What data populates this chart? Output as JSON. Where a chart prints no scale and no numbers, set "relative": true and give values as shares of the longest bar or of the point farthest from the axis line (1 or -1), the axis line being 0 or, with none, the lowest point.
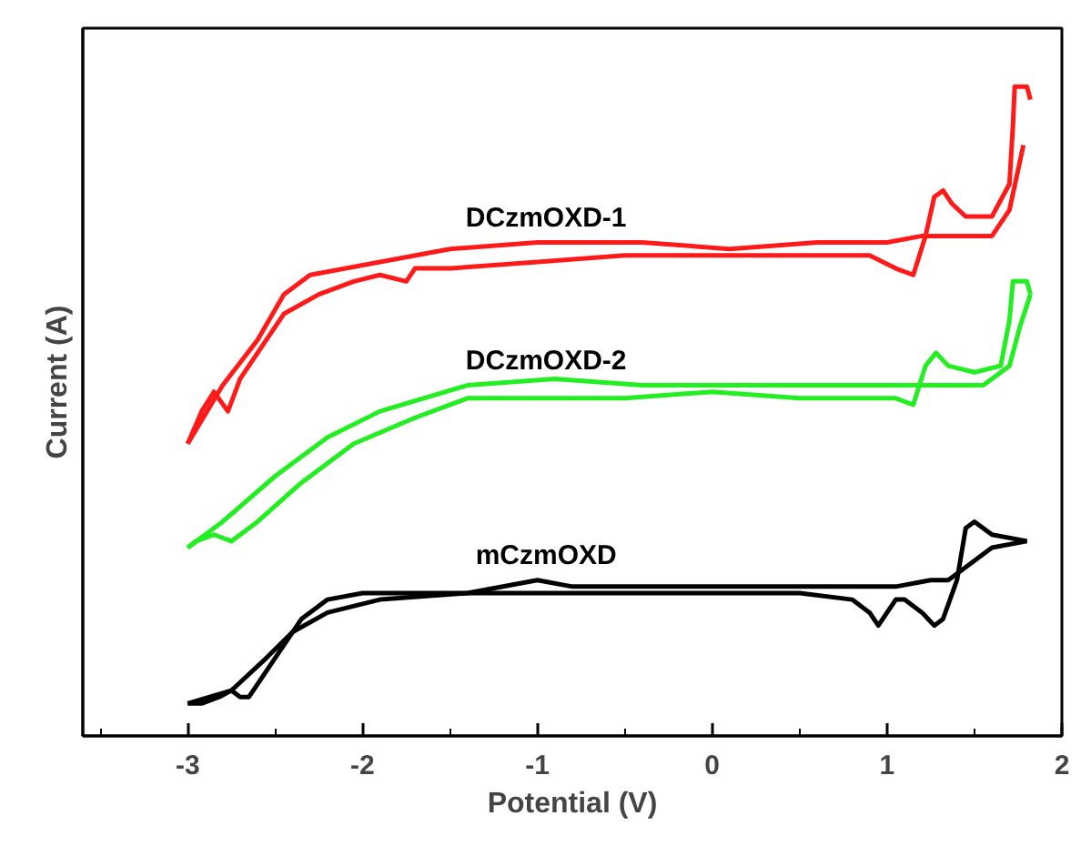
{
  "chart_data": {
    "type": "line",
    "xlabel": "Potential (V)",
    "ylabel": "Current (A)",
    "relative": true,
    "legend": false,
    "marker": "none",
    "line_style": "solid",
    "xlim": [
      -3.6,
      2
    ],
    "xticks": [
      -3,
      -2,
      -1,
      0,
      1,
      2
    ],
    "series": [
      {
        "name": "DCzmOXD-1",
        "color": "#ff1a1a",
        "x": [
          -3.0,
          -2.92,
          -2.85,
          -2.77,
          -2.7,
          -2.55,
          -2.45,
          -2.25,
          -2.05,
          -1.9,
          -1.75,
          -1.7,
          -1.5,
          -1.0,
          -0.5,
          0.0,
          0.5,
          0.9,
          1.05,
          1.15,
          1.22,
          1.27,
          1.32,
          1.37,
          1.45,
          1.6,
          1.7,
          1.72,
          1.73,
          1.8,
          1.82
        ],
        "values": [
          0.45,
          0.5,
          0.53,
          0.5,
          0.55,
          0.61,
          0.65,
          0.68,
          0.7,
          0.71,
          0.7,
          0.72,
          0.72,
          0.73,
          0.74,
          0.74,
          0.74,
          0.74,
          0.72,
          0.71,
          0.77,
          0.83,
          0.84,
          0.82,
          0.8,
          0.8,
          0.85,
          0.94,
          1.0,
          1.0,
          0.98
        ]
      },
      {
        "color": "#ff1a1a",
        "x": [
          -3.0,
          -2.8,
          -2.6,
          -2.45,
          -2.3,
          -1.9,
          -1.5,
          -1.0,
          -0.4,
          0.1,
          0.6,
          1.0,
          1.2,
          1.4,
          1.6,
          1.7,
          1.78
        ],
        "values": [
          0.45,
          0.54,
          0.61,
          0.68,
          0.71,
          0.73,
          0.75,
          0.76,
          0.76,
          0.75,
          0.76,
          0.76,
          0.77,
          0.77,
          0.77,
          0.81,
          0.91
        ]
      },
      {
        "name": "DCzmOXD-2",
        "color": "#22ee22",
        "x": [
          -3.0,
          -2.95,
          -2.85,
          -2.75,
          -2.6,
          -2.35,
          -2.05,
          -1.7,
          -1.4,
          -1.0,
          -0.5,
          0.0,
          0.5,
          0.9,
          1.05,
          1.15,
          1.22,
          1.28,
          1.35,
          1.5,
          1.65,
          1.7,
          1.72,
          1.8,
          1.82
        ],
        "values": [
          0.29,
          0.3,
          0.31,
          0.3,
          0.33,
          0.39,
          0.45,
          0.49,
          0.52,
          0.52,
          0.52,
          0.53,
          0.52,
          0.52,
          0.52,
          0.51,
          0.57,
          0.59,
          0.57,
          0.56,
          0.57,
          0.64,
          0.7,
          0.7,
          0.68
        ]
      },
      {
        "color": "#22ee22",
        "x": [
          -3.0,
          -2.8,
          -2.5,
          -2.2,
          -1.9,
          -1.4,
          -0.9,
          -0.4,
          0.1,
          0.6,
          1.0,
          1.3,
          1.55,
          1.7,
          1.76,
          1.82
        ],
        "values": [
          0.29,
          0.33,
          0.4,
          0.46,
          0.5,
          0.54,
          0.55,
          0.54,
          0.54,
          0.54,
          0.54,
          0.54,
          0.54,
          0.57,
          0.63,
          0.68
        ]
      },
      {
        "name": "mCzmOXD",
        "color": "#000000",
        "x": [
          -3.0,
          -2.92,
          -2.82,
          -2.75,
          -2.7,
          -2.65,
          -2.5,
          -2.35,
          -2.2,
          -2.0,
          -1.5,
          -1.0,
          -0.5,
          0.0,
          0.5,
          0.8,
          0.9,
          0.95,
          1.05,
          1.1,
          1.2,
          1.27,
          1.32,
          1.4,
          1.45,
          1.5,
          1.6,
          1.8
        ],
        "values": [
          0.05,
          0.05,
          0.06,
          0.07,
          0.06,
          0.06,
          0.12,
          0.18,
          0.21,
          0.22,
          0.22,
          0.22,
          0.22,
          0.22,
          0.22,
          0.21,
          0.19,
          0.17,
          0.21,
          0.21,
          0.19,
          0.17,
          0.18,
          0.24,
          0.32,
          0.33,
          0.31,
          0.3
        ]
      },
      {
        "color": "#000000",
        "x": [
          -3.0,
          -2.75,
          -2.55,
          -2.4,
          -2.2,
          -1.9,
          -1.4,
          -1.0,
          -0.8,
          -0.5,
          -0.1,
          0.4,
          0.8,
          1.05,
          1.25,
          1.35,
          1.45,
          1.6,
          1.8
        ],
        "values": [
          0.05,
          0.07,
          0.12,
          0.16,
          0.19,
          0.21,
          0.22,
          0.24,
          0.23,
          0.23,
          0.23,
          0.23,
          0.23,
          0.23,
          0.24,
          0.24,
          0.26,
          0.29,
          0.3
        ]
      }
    ]
  }
}
